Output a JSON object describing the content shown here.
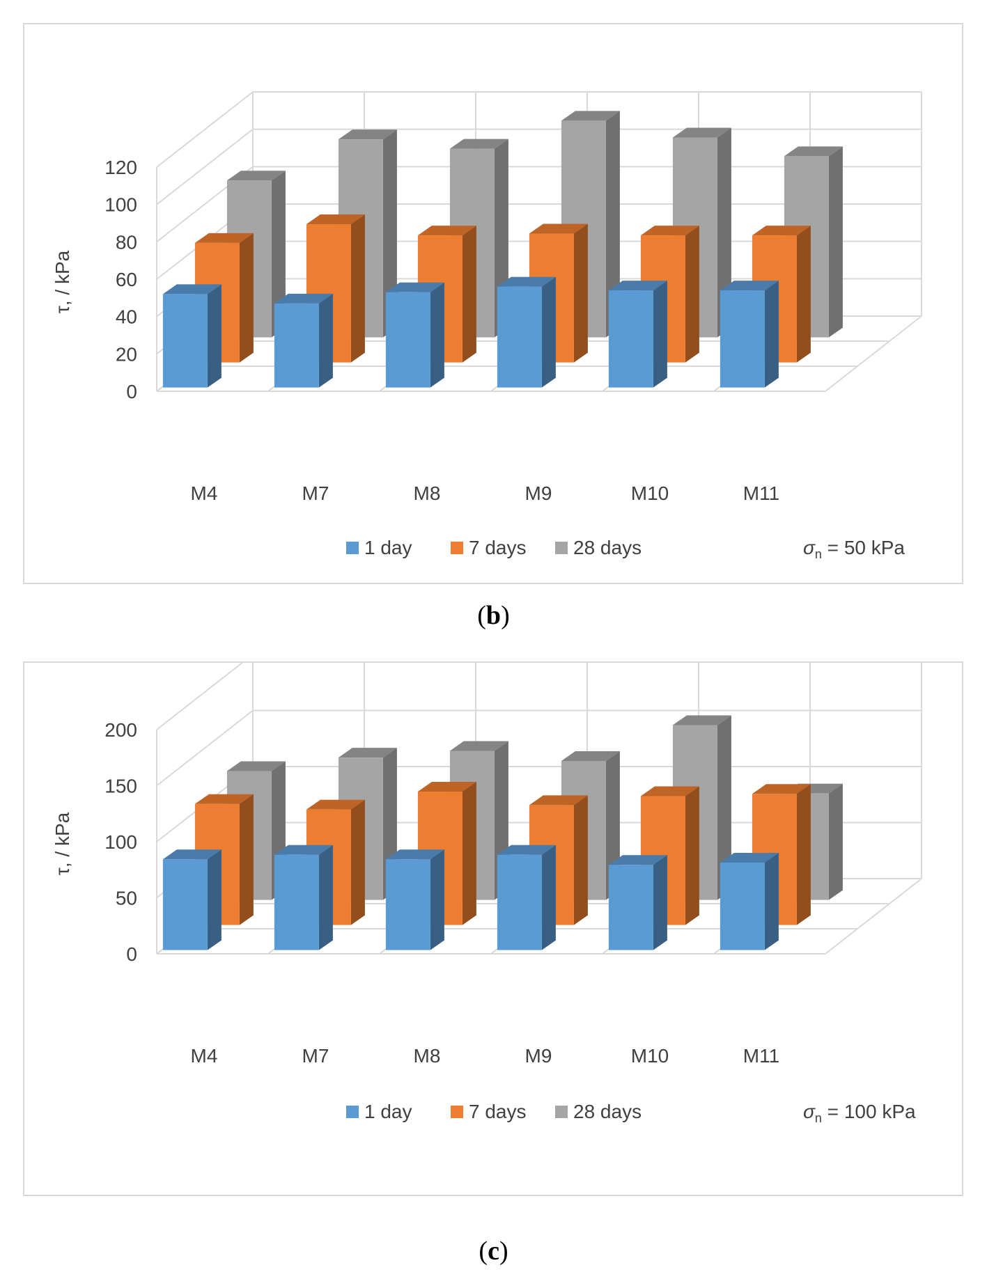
{
  "chart_data": [
    {
      "type": "bar",
      "variant": "3d-column-stacked-depth",
      "panel": "b",
      "ylabel": "τ, / kPa",
      "ylim": [
        0,
        120
      ],
      "yticks": [
        "0",
        "20",
        "40",
        "60",
        "80",
        "100",
        "120"
      ],
      "categories": [
        "M4",
        "M7",
        "M8",
        "M9",
        "M10",
        "M11"
      ],
      "series": [
        {
          "name": "1 day",
          "color": "#5b9bd5",
          "values": [
            50,
            45,
            51,
            54,
            52,
            52
          ]
        },
        {
          "name": "7 days",
          "color": "#ed7d31",
          "values": [
            64,
            74,
            68,
            69,
            68,
            68
          ]
        },
        {
          "name": "28 days",
          "color": "#a5a5a5",
          "values": [
            84,
            106,
            101,
            116,
            107,
            97
          ]
        }
      ],
      "annotation": {
        "symbol": "σ",
        "sub": "n",
        "text": " = 50 kPa"
      },
      "legend": "bottom",
      "grid": true
    },
    {
      "type": "bar",
      "variant": "3d-column-stacked-depth",
      "panel": "c",
      "ylabel": "τ, / kPa",
      "ylim": [
        0,
        200
      ],
      "yticks": [
        "0",
        "50",
        "100",
        "150",
        "200"
      ],
      "categories": [
        "M4",
        "M7",
        "M8",
        "M9",
        "M10",
        "M11"
      ],
      "series": [
        {
          "name": "1 day",
          "color": "#5b9bd5",
          "values": [
            81,
            85,
            81,
            85,
            76,
            78
          ]
        },
        {
          "name": "7 days",
          "color": "#ed7d31",
          "values": [
            108,
            103,
            119,
            107,
            115,
            117
          ]
        },
        {
          "name": "28 days",
          "color": "#a5a5a5",
          "values": [
            115,
            127,
            133,
            124,
            156,
            95
          ]
        }
      ],
      "annotation": {
        "symbol": "σ",
        "sub": "n",
        "text": " = 100 kPa"
      },
      "legend": "bottom",
      "grid": true
    }
  ],
  "captions": {
    "b": "b",
    "c": "c"
  },
  "colors": {
    "frame": "#d9d9d9",
    "grid": "#d9d9d9",
    "text": "#404040"
  }
}
